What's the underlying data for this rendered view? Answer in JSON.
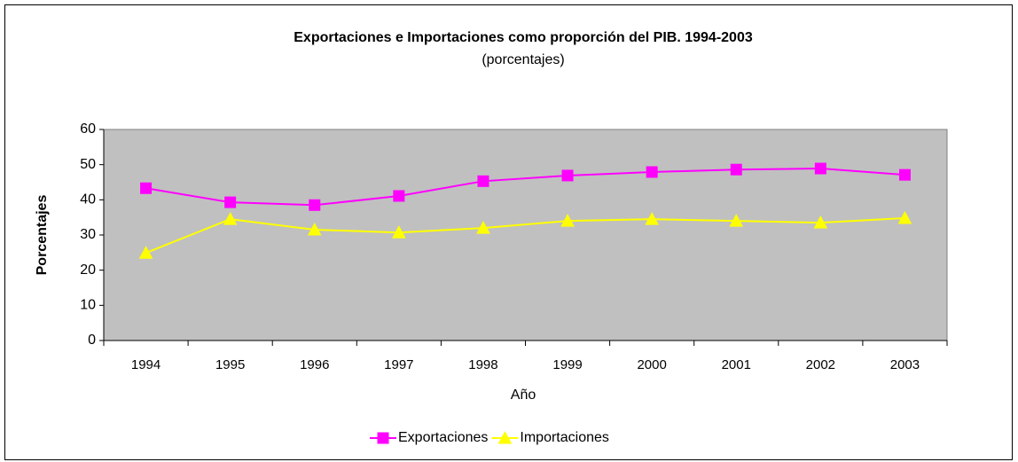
{
  "chart_data": {
    "type": "line",
    "title": "Exportaciones e Importaciones como proporción del PIB. 1994-2003",
    "subtitle": "(porcentajes)",
    "x_label": "Año",
    "y_label": "Porcentajes",
    "categories": [
      "1994",
      "1995",
      "1996",
      "1997",
      "1998",
      "1999",
      "2000",
      "2001",
      "2002",
      "2003"
    ],
    "series": [
      {
        "name": "Exportaciones",
        "color": "#ff00ff",
        "marker": "square",
        "values": [
          43.3,
          39.3,
          38.5,
          41.1,
          45.3,
          46.9,
          47.9,
          48.6,
          48.9,
          47.1
        ]
      },
      {
        "name": "Importaciones",
        "color": "#ffff00",
        "marker": "triangle",
        "values": [
          24.9,
          34.5,
          31.5,
          30.7,
          32.0,
          34.0,
          34.5,
          34.0,
          33.5,
          34.8
        ]
      }
    ],
    "ylim": [
      0,
      60
    ],
    "yticks": [
      0,
      10,
      20,
      30,
      40,
      50,
      60
    ],
    "legend": "bottom",
    "plot_background": "#c0c0c0"
  }
}
